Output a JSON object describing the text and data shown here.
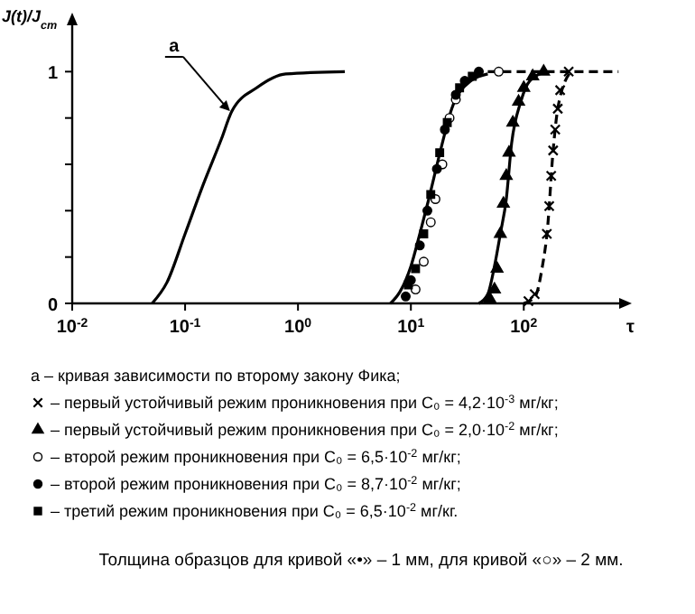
{
  "chart_data": {
    "type": "line",
    "ylabel": "J(t)/J$_{ст}$",
    "xlabel": "τ",
    "log": "x",
    "xlim": [
      0.01,
      700
    ],
    "ylim": [
      0,
      1.2
    ],
    "xticks": [
      {
        "value": 0.01,
        "label": "10$^{-2}$"
      },
      {
        "value": 0.1,
        "label": "10$^{-1}$"
      },
      {
        "value": 1,
        "label": "10$^{0}$"
      },
      {
        "value": 10,
        "label": "10$^{1}$"
      },
      {
        "value": 100,
        "label": "10$^{2}$"
      }
    ],
    "yticks": [
      0,
      {
        "value": 0.2,
        "label": null
      },
      {
        "value": 0.4,
        "label": null
      },
      {
        "value": 0.6,
        "label": null
      },
      {
        "value": 0.8,
        "label": null
      },
      1
    ],
    "grid": false,
    "legend": "bottom",
    "series": [
      {
        "color": "#000000",
        "line_style": "solid",
        "marker": "none",
        "x": [
          0.051,
          0.069,
          0.1,
          0.144,
          0.21,
          0.26,
          0.43,
          0.78,
          2.6
        ],
        "values": [
          0,
          0.09,
          0.3,
          0.51,
          0.71,
          0.83,
          0.93,
          0.99,
          1
        ]
      },
      {
        "color": "#000000",
        "line_style": "solid",
        "marker": "none",
        "x": [
          6.6,
          8,
          10,
          12,
          14.4,
          18.3,
          23,
          34,
          48
        ],
        "values": [
          0,
          0.05,
          0.16,
          0.3,
          0.45,
          0.66,
          0.84,
          0.96,
          0.99
        ]
      },
      {
        "color": "#000000",
        "line_style": "dashed",
        "marker": "none",
        "x": [
          48,
          690
        ],
        "values": [
          1,
          1
        ]
      },
      {
        "color": "#000000",
        "line_style": "solid",
        "marker": "none",
        "x": [
          40,
          48,
          55,
          62,
          70,
          78,
          94,
          113,
          160
        ],
        "values": [
          0,
          0.04,
          0.16,
          0.3,
          0.45,
          0.69,
          0.87,
          0.96,
          1
        ]
      },
      {
        "color": "#000000",
        "line_style": "dashed",
        "marker": "none",
        "x": [
          100,
          126,
          145,
          162,
          182,
          200,
          260
        ],
        "values": [
          0,
          0.03,
          0.15,
          0.32,
          0.66,
          0.84,
          1
        ]
      },
      {
        "type": "scatter",
        "name": "– первый устойчивый режим проникновения при C₀ = 4,2·10$^{-3}$ мг/кг;",
        "color": "#000000",
        "marker": "cross",
        "x": [
          110,
          125,
          160,
          168,
          175,
          182,
          190,
          200,
          210,
          250
        ],
        "values": [
          0.01,
          0.04,
          0.3,
          0.42,
          0.55,
          0.66,
          0.75,
          0.84,
          0.92,
          1
        ]
      },
      {
        "type": "scatter",
        "name": "– первый устойчивый режим проникновения при C₀ = 2,0·10$^{-2}$ мг/кг;",
        "color": "#000000",
        "marker": "triangle",
        "x": [
          50,
          55,
          58,
          62,
          66,
          70,
          74,
          80,
          90,
          100,
          120,
          150
        ],
        "values": [
          0.02,
          0.06,
          0.15,
          0.3,
          0.43,
          0.55,
          0.65,
          0.78,
          0.87,
          0.93,
          0.98,
          1
        ]
      },
      {
        "type": "scatter",
        "name": "– второй режим проникновения при C₀ = 6,5·10$^{-2}$ мг/кг;",
        "color": "#ffffff",
        "marker": "circle",
        "x": [
          11,
          13,
          15,
          16.5,
          19,
          22,
          25,
          60
        ],
        "values": [
          0.06,
          0.18,
          0.35,
          0.45,
          0.6,
          0.8,
          0.88,
          1
        ]
      },
      {
        "type": "scatter",
        "name": "– второй режим проникновения при C₀ = 8,7·10$^{-2}$ мг/кг;",
        "color": "#000000",
        "marker": "circle",
        "x": [
          9,
          10,
          12,
          14,
          17,
          20,
          25,
          30,
          40
        ],
        "values": [
          0.03,
          0.1,
          0.25,
          0.4,
          0.58,
          0.75,
          0.9,
          0.96,
          1
        ]
      },
      {
        "type": "scatter",
        "name": "– третий режим проникновения при C₀ = 6,5·10$^{-2}$ мг/кг.",
        "color": "#000000",
        "marker": "square",
        "x": [
          9.5,
          11,
          13,
          15,
          18,
          21,
          27,
          35
        ],
        "values": [
          0.08,
          0.15,
          0.3,
          0.47,
          0.65,
          0.78,
          0.93,
          0.98
        ]
      }
    ],
    "annotations": [
      {
        "text": "a",
        "x": 0.25,
        "y": 0.83
      },
      "a – кривая зависимости по второму закону Фика;",
      "Толщина образцов для кривой «•» – 1 мм, для кривой «○» – 2 мм."
    ]
  }
}
